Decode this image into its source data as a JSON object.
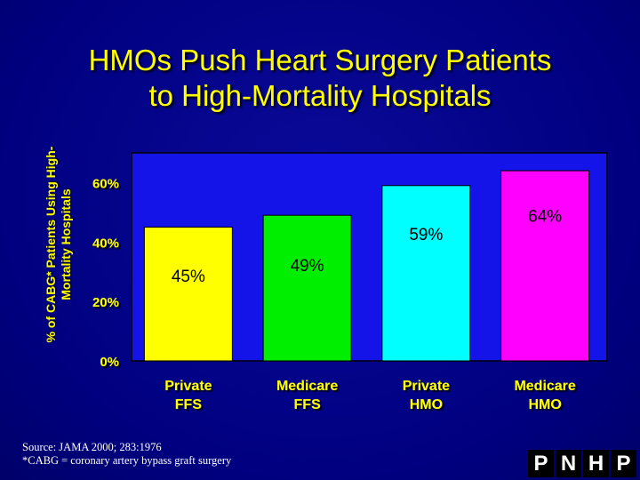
{
  "slide": {
    "title_line1": "HMOs Push Heart Surgery Patients",
    "title_line2": "to High-Mortality Hospitals",
    "source": "Source: JAMA 2000; 283:1976",
    "footnote": "*CABG = coronary artery bypass graft surgery",
    "logo_letters": [
      "P",
      "N",
      "H",
      "P"
    ]
  },
  "chart_data": {
    "type": "bar",
    "title": "HMOs Push Heart Surgery Patients to High-Mortality Hospitals",
    "ylabel": "% of CABG* Patients Using High-Mortality Hospitals",
    "ylabel_lines": [
      "% of CABG* Patients Using High-",
      "Mortality Hospitals"
    ],
    "xlabel": "",
    "categories": [
      [
        "Private",
        "FFS"
      ],
      [
        "Medicare",
        "FFS"
      ],
      [
        "Private",
        "HMO"
      ],
      [
        "Medicare",
        "HMO"
      ]
    ],
    "values": [
      45,
      49,
      59,
      64
    ],
    "data_labels": [
      "45%",
      "49%",
      "59%",
      "64%"
    ],
    "ylim": [
      0,
      70
    ],
    "yticks": [
      0,
      20,
      40,
      60
    ],
    "ytick_labels": [
      "0%",
      "20%",
      "40%",
      "60%"
    ],
    "grid": false,
    "colors": {
      "bars": [
        "#ffff00",
        "#00ee00",
        "#00ffff",
        "#ff00ff"
      ],
      "plot_bg": "#1414e8",
      "title": "#ffff00",
      "axis_text": "#ffff00",
      "data_label": "#000000"
    }
  }
}
